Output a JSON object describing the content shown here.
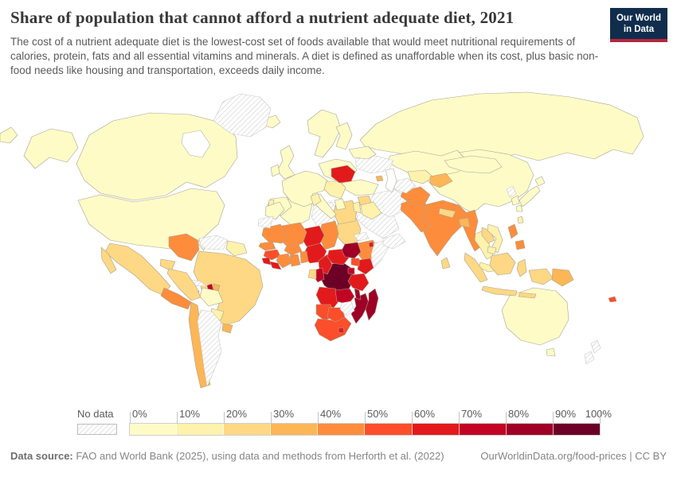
{
  "header": {
    "title": "Share of population that cannot afford a nutrient adequate diet, 2021",
    "subtitle": "The cost of a nutrient adequate diet is the lowest-cost set of foods available that would meet nutritional requirements of calories, protein, fats and all essential vitamins and minerals. A diet is defined as unaffordable when its cost, plus basic non-food needs like housing and transportation, exceeds daily income.",
    "logo": {
      "line1": "Our World",
      "line2": "in Data",
      "bg_color": "#102d4e",
      "accent_color": "#b5273c"
    }
  },
  "legend": {
    "no_data_label": "No data",
    "tick_labels": [
      "0%",
      "10%",
      "20%",
      "30%",
      "40%",
      "50%",
      "60%",
      "70%",
      "80%",
      "90%",
      "100%"
    ],
    "colors": [
      "#fffbc7",
      "#fff2ad",
      "#fed884",
      "#fdb656",
      "#fd8d3c",
      "#fc4e2a",
      "#e31a1c",
      "#c20324",
      "#9e0026",
      "#6d0026"
    ]
  },
  "footer": {
    "source_label": "Data source:",
    "source_text": " FAO and World Bank (2025), using data and methods from Herforth et al. (2022)",
    "right_text": "OurWorldinData.org/food-prices | CC BY"
  },
  "chart_data": {
    "type": "heatmap",
    "subtype": "choropleth-world-map",
    "title": "Share of population that cannot afford a nutrient adequate diet",
    "year": 2021,
    "unit": "% of population",
    "legend_position": "bottom",
    "bin_labels": [
      "0-10%",
      "10-20%",
      "20-30%",
      "30-40%",
      "40-50%",
      "50-60%",
      "60-70%",
      "70-80%",
      "80-90%",
      "90-100%"
    ],
    "no_data_bin": -1,
    "regions": [
      {
        "id": "russia",
        "name": "Russia",
        "bin": 0
      },
      {
        "id": "canada",
        "name": "Canada",
        "bin": 0
      },
      {
        "id": "usa",
        "name": "United States",
        "bin": 0
      },
      {
        "id": "florida",
        "name": "United States",
        "bin": 0
      },
      {
        "id": "china",
        "name": "China",
        "bin": 0
      },
      {
        "id": "brazil",
        "name": "Brazil",
        "bin": 2
      },
      {
        "id": "australia",
        "name": "Australia",
        "bin": 0
      },
      {
        "id": "kazakhstan",
        "name": "Kazakhstan",
        "bin": 0
      },
      {
        "id": "saudi",
        "name": "Saudi Arabia",
        "bin": -1
      },
      {
        "id": "iran",
        "name": "Iran",
        "bin": -1
      },
      {
        "id": "india",
        "name": "India",
        "bin": 4
      },
      {
        "id": "algeria",
        "name": "Algeria",
        "bin": 0
      },
      {
        "id": "libya",
        "name": "Libya",
        "bin": -1
      },
      {
        "id": "sudan",
        "name": "Sudan",
        "bin": 2
      },
      {
        "id": "chad",
        "name": "Chad",
        "bin": 4
      },
      {
        "id": "niger",
        "name": "Niger",
        "bin": 6
      },
      {
        "id": "mali",
        "name": "Mali",
        "bin": 4
      },
      {
        "id": "mauritania",
        "name": "Mauritania",
        "bin": 4
      },
      {
        "id": "ethiopia",
        "name": "Ethiopia",
        "bin": 4
      },
      {
        "id": "somalia",
        "name": "Somalia",
        "bin": -1
      },
      {
        "id": "drc",
        "name": "Democratic Republic of Congo",
        "bin": 9
      },
      {
        "id": "angola",
        "name": "Angola",
        "bin": 6
      },
      {
        "id": "namibia",
        "name": "Namibia",
        "bin": 5
      },
      {
        "id": "south-africa",
        "name": "South Africa",
        "bin": 5
      },
      {
        "id": "botswana",
        "name": "Botswana",
        "bin": 5
      },
      {
        "id": "mozambique",
        "name": "Mozambique",
        "bin": 8
      },
      {
        "id": "tanzania",
        "name": "Tanzania",
        "bin": 6
      },
      {
        "id": "kenya",
        "name": "Kenya",
        "bin": 6
      },
      {
        "id": "zambia",
        "name": "Zambia",
        "bin": 7
      },
      {
        "id": "zimbabwe",
        "name": "Zimbabwe",
        "bin": -1
      },
      {
        "id": "egypt",
        "name": "Egypt",
        "bin": 2
      },
      {
        "id": "nigeria",
        "name": "Nigeria",
        "bin": 6
      },
      {
        "id": "cameroon",
        "name": "Cameroon",
        "bin": 6
      },
      {
        "id": "car",
        "name": "Central African Republic",
        "bin": 6
      },
      {
        "id": "south-sudan",
        "name": "South Sudan",
        "bin": 8
      },
      {
        "id": "mongolia",
        "name": "Mongolia",
        "bin": 0
      },
      {
        "id": "pakistan",
        "name": "Pakistan",
        "bin": 4
      },
      {
        "id": "afghanistan",
        "name": "Afghanistan",
        "bin": 4
      },
      {
        "id": "turkmenistan",
        "name": "Turkmenistan",
        "bin": -1
      },
      {
        "id": "uzbekistan",
        "name": "Uzbekistan",
        "bin": 1
      },
      {
        "id": "kyrgyz-tajik",
        "name": "Kyrgyzstan & Tajikistan",
        "bin": 3
      },
      {
        "id": "turkey",
        "name": "Turkey",
        "bin": 0
      },
      {
        "id": "ukraine",
        "name": "Ukraine",
        "bin": -1
      },
      {
        "id": "scandinavia",
        "name": "Norway & Sweden",
        "bin": 0
      },
      {
        "id": "finland",
        "name": "Finland",
        "bin": 0
      },
      {
        "id": "west-europe",
        "name": "France & Germany",
        "bin": 0
      },
      {
        "id": "central-europe",
        "name": "Poland & Central Europe",
        "bin": 0
      },
      {
        "id": "belarus",
        "name": "Belarus & Baltic states",
        "bin": 0
      },
      {
        "id": "iberia",
        "name": "Spain",
        "bin": 0
      },
      {
        "id": "portugal",
        "name": "Portugal",
        "bin": 1
      },
      {
        "id": "italy",
        "name": "Italy",
        "bin": 0
      },
      {
        "id": "balkans",
        "name": "Balkans",
        "bin": 1
      },
      {
        "id": "greece",
        "name": "Greece",
        "bin": 0
      },
      {
        "id": "romania",
        "name": "Romania",
        "bin": 6
      },
      {
        "id": "uk",
        "name": "United Kingdom",
        "bin": 0
      },
      {
        "id": "ireland",
        "name": "Ireland",
        "bin": 0
      },
      {
        "id": "iceland",
        "name": "Iceland",
        "bin": 0
      },
      {
        "id": "greenland",
        "name": "Greenland",
        "bin": -1
      },
      {
        "id": "alaska",
        "name": "United States (Alaska)",
        "bin": 0
      },
      {
        "id": "mexico",
        "name": "Mexico",
        "bin": 2
      },
      {
        "id": "baja",
        "name": "Mexico",
        "bin": 2
      },
      {
        "id": "central-america",
        "name": "Central America",
        "bin": 4
      },
      {
        "id": "cuba",
        "name": "Cuba",
        "bin": -1
      },
      {
        "id": "jamaica",
        "name": "Jamaica",
        "bin": 4
      },
      {
        "id": "haiti",
        "name": "Haiti",
        "bin": 7
      },
      {
        "id": "dominican",
        "name": "Dominican Republic",
        "bin": 3
      },
      {
        "id": "colombia",
        "name": "Colombia",
        "bin": 4
      },
      {
        "id": "venezuela",
        "name": "Venezuela",
        "bin": -1
      },
      {
        "id": "guianas",
        "name": "Guyana & Suriname",
        "bin": 1
      },
      {
        "id": "ecuador",
        "name": "Ecuador",
        "bin": 2
      },
      {
        "id": "peru",
        "name": "Peru",
        "bin": 2
      },
      {
        "id": "bolivia",
        "name": "Bolivia",
        "bin": 0
      },
      {
        "id": "paraguay",
        "name": "Paraguay",
        "bin": 1
      },
      {
        "id": "uruguay",
        "name": "Uruguay",
        "bin": 3
      },
      {
        "id": "chile",
        "name": "Chile",
        "bin": 3
      },
      {
        "id": "argentina",
        "name": "Argentina",
        "bin": -1
      },
      {
        "id": "morocco",
        "name": "Morocco",
        "bin": 0
      },
      {
        "id": "wsahara",
        "name": "Western Sahara",
        "bin": -1
      },
      {
        "id": "tunisia",
        "name": "Tunisia",
        "bin": 1
      },
      {
        "id": "senegal",
        "name": "Senegal",
        "bin": 4
      },
      {
        "id": "guinea",
        "name": "Guinea",
        "bin": 5
      },
      {
        "id": "sierra-leone",
        "name": "Sierra Leone",
        "bin": 6
      },
      {
        "id": "liberia",
        "name": "Liberia",
        "bin": 6
      },
      {
        "id": "ivory-coast",
        "name": "Cote d'Ivoire",
        "bin": 4
      },
      {
        "id": "ghana",
        "name": "Ghana",
        "bin": 4
      },
      {
        "id": "togo-benin",
        "name": "Togo & Benin",
        "bin": 4
      },
      {
        "id": "burkina",
        "name": "Burkina Faso",
        "bin": 4
      },
      {
        "id": "congo",
        "name": "Congo",
        "bin": 7
      },
      {
        "id": "gabon",
        "name": "Gabon",
        "bin": 2
      },
      {
        "id": "uganda",
        "name": "Uganda",
        "bin": 5
      },
      {
        "id": "rwanda-burundi",
        "name": "Rwanda & Burundi",
        "bin": 7
      },
      {
        "id": "malawi",
        "name": "Malawi",
        "bin": 8
      },
      {
        "id": "lesotho",
        "name": "Lesotho",
        "bin": 6
      },
      {
        "id": "madagascar",
        "name": "Madagascar",
        "bin": 8
      },
      {
        "id": "eritrea",
        "name": "Eritrea",
        "bin": -1
      },
      {
        "id": "djibouti",
        "name": "Djibouti",
        "bin": 6
      },
      {
        "id": "syria",
        "name": "Syria",
        "bin": 2
      },
      {
        "id": "iraq",
        "name": "Iraq",
        "bin": 1
      },
      {
        "id": "israel-jordan",
        "name": "Israel & Jordan",
        "bin": 1
      },
      {
        "id": "armenia",
        "name": "Armenia",
        "bin": 3
      },
      {
        "id": "yemen-oman",
        "name": "Yemen & Oman",
        "bin": -1
      },
      {
        "id": "myanmar",
        "name": "Myanmar",
        "bin": 4
      },
      {
        "id": "thailand",
        "name": "Thailand",
        "bin": 1
      },
      {
        "id": "laos",
        "name": "Laos",
        "bin": 2
      },
      {
        "id": "vietnam",
        "name": "Vietnam",
        "bin": 1
      },
      {
        "id": "cambodia",
        "name": "Cambodia",
        "bin": 1
      },
      {
        "id": "malaysia",
        "name": "Malaysia",
        "bin": 1
      },
      {
        "id": "nepal",
        "name": "Nepal",
        "bin": 2
      },
      {
        "id": "bangladesh",
        "name": "Bangladesh",
        "bin": 3
      },
      {
        "id": "sri-lanka",
        "name": "Sri Lanka",
        "bin": 2
      },
      {
        "id": "sumatra",
        "name": "Indonesia",
        "bin": 2
      },
      {
        "id": "java",
        "name": "Indonesia",
        "bin": 2
      },
      {
        "id": "borneo",
        "name": "Indonesia (Borneo)",
        "bin": 2
      },
      {
        "id": "sulawesi",
        "name": "Indonesia",
        "bin": 2
      },
      {
        "id": "lesser-sunda",
        "name": "Indonesia",
        "bin": 2
      },
      {
        "id": "west-papua",
        "name": "Indonesia (Papua)",
        "bin": 2
      },
      {
        "id": "png",
        "name": "Papua New Guinea",
        "bin": 3
      },
      {
        "id": "luzon",
        "name": "Philippines",
        "bin": 4
      },
      {
        "id": "mindanao",
        "name": "Philippines",
        "bin": 4
      },
      {
        "id": "nkorea",
        "name": "North Korea",
        "bin": -1
      },
      {
        "id": "skorea",
        "name": "South Korea",
        "bin": 0
      },
      {
        "id": "honshu",
        "name": "Japan",
        "bin": 0
      },
      {
        "id": "hokkaido",
        "name": "Japan",
        "bin": 0
      },
      {
        "id": "kyushu",
        "name": "Japan",
        "bin": 0
      },
      {
        "id": "taiwan",
        "name": "Taiwan",
        "bin": 1
      },
      {
        "id": "tasmania",
        "name": "Australia",
        "bin": 0
      },
      {
        "id": "nz-north",
        "name": "New Zealand",
        "bin": -1
      },
      {
        "id": "nz-south",
        "name": "New Zealand",
        "bin": -1
      },
      {
        "id": "fiji",
        "name": "Fiji",
        "bin": 5
      },
      {
        "id": "chukotka",
        "name": "Russia",
        "bin": 0
      }
    ]
  }
}
